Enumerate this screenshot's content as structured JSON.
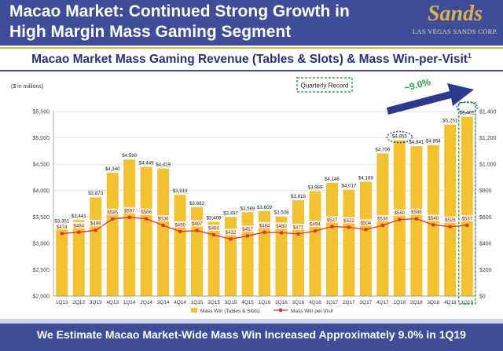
{
  "header": {
    "title_line1": "Macao Market: Continued Strong Growth in",
    "title_line2": "High Margin Mass Gaming Segment",
    "logo_word": "Sands",
    "logo_sub": "LAS VEGAS SANDS CORP."
  },
  "subtitle": "Macao Market Mass Gaming Revenue (Tables & Slots) & Mass Win-per-Visit",
  "subtitle_sup": "1",
  "footer_text": "We Estimate Macao Market-Wide Mass Win Increased Approximately 9.0% in 1Q19",
  "colors": {
    "header_bg": "#3f4c99",
    "bar": "#f2c230",
    "line": "#d9343a",
    "gold_accent": "#d7b94e"
  },
  "chart_data": {
    "type": "bar",
    "units_label": "($ in millions)",
    "categories": [
      "1Q13",
      "2Q13",
      "3Q13",
      "4Q13",
      "1Q14",
      "2Q14",
      "3Q14",
      "4Q14",
      "1Q15",
      "2Q15",
      "3Q15",
      "4Q15",
      "1Q16",
      "2Q16",
      "3Q16",
      "4Q16",
      "1Q17",
      "2Q17",
      "3Q17",
      "4Q17",
      "1Q18",
      "2Q18",
      "3Q18",
      "4Q18",
      "1Q19"
    ],
    "series": [
      {
        "name": "Mass Win (Tables & Slots)",
        "type": "bar",
        "axis": "left",
        "values": [
          3351,
          3441,
          3873,
          4340,
          4589,
          4449,
          4419,
          3919,
          3682,
          3408,
          3497,
          3589,
          3609,
          3508,
          3816,
          3989,
          4146,
          4017,
          4169,
          4706,
          4955,
          4841,
          4864,
          5251,
          5401
        ],
        "labels": [
          "$3,351",
          "$3,441",
          "$3,873",
          "$4,340",
          "$4,589",
          "$4,449",
          "$4,419",
          "$3,919",
          "$3,682",
          "$3,408",
          "$3,497",
          "$3,589",
          "$3,609",
          "$3,508",
          "$3,816",
          "$3,989",
          "$4,146",
          "$4,017",
          "$4,169",
          "$4,706",
          "$4,955",
          "$4,841",
          "$4,864",
          "$5,251",
          "$5,401"
        ]
      },
      {
        "name": "Mass Win per Visit",
        "type": "line",
        "axis": "right",
        "values": [
          474,
          484,
          499,
          585,
          597,
          586,
          536,
          490,
          497,
          464,
          432,
          457,
          484,
          480,
          471,
          494,
          527,
          522,
          504,
          536,
          580,
          586,
          540,
          526,
          537
        ],
        "labels": [
          "$474",
          "$484",
          "$499",
          "$585",
          "$597",
          "$586",
          "$536",
          "$490",
          "$497",
          "$464",
          "$432",
          "$457",
          "$484",
          "$480",
          "$471",
          "$494",
          "$527",
          "$522",
          "$504",
          "$536",
          "$580",
          "$586",
          "$540",
          "$526",
          "$537"
        ]
      }
    ],
    "y_left": {
      "min": 2000,
      "max": 5500,
      "ticks": [
        "$2,000",
        "$2,500",
        "$3,000",
        "$3,500",
        "$4,000",
        "$4,500",
        "$5,000",
        "$5,500"
      ]
    },
    "y_right": {
      "min": 0,
      "max": 1400,
      "ticks": [
        "$0",
        "$200",
        "$400",
        "$600",
        "$800",
        "$1,000",
        "$1,200",
        "$1,400"
      ]
    },
    "grid": true,
    "legend": "bottom",
    "annotations": {
      "quarterly_record": "Quarterly Record",
      "growth": "~9.0%"
    }
  }
}
